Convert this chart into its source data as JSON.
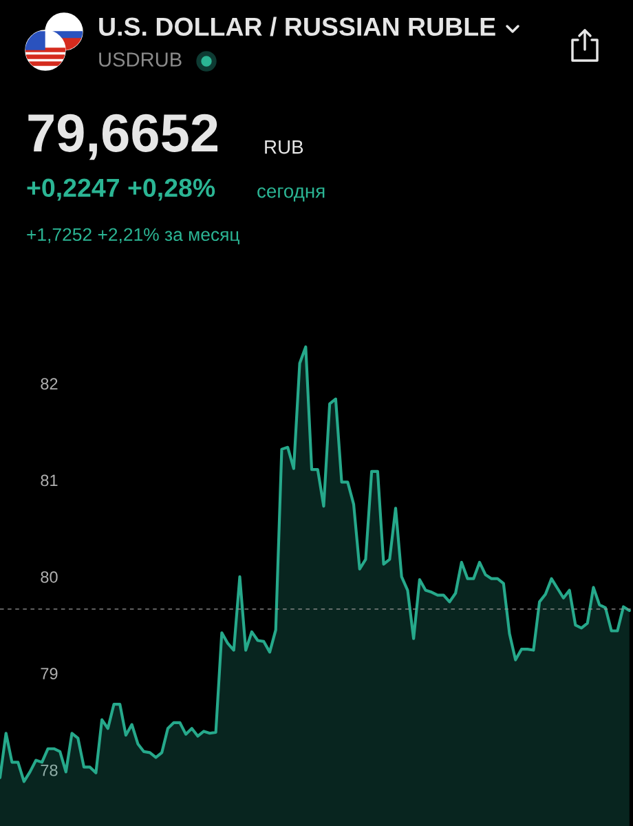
{
  "chart_data": {
    "type": "area",
    "title": "U.S. DOLLAR / RUSSIAN RUBLE",
    "subtitle": "USDRUB",
    "annotations": [
      "79,6652",
      "RUB",
      "+0,2247 +0,28%",
      "сегодня",
      "+1,7252 +2,21% за месяц"
    ],
    "categories": [
      null,
      null,
      null,
      null,
      null,
      null,
      null,
      null,
      null,
      null,
      null,
      null,
      null,
      null,
      null,
      null,
      null,
      null,
      null,
      null,
      null,
      null,
      null,
      null,
      null,
      null,
      null,
      null,
      null,
      null,
      null,
      null,
      null,
      null,
      null,
      null,
      null,
      null,
      null,
      null,
      null,
      null,
      null,
      null,
      null,
      null,
      null,
      null,
      null,
      null,
      null,
      null,
      null,
      null,
      null,
      null,
      null,
      null,
      null,
      null,
      null,
      null,
      null,
      null,
      null,
      null,
      null,
      null,
      null,
      null,
      null,
      null,
      null,
      null,
      null,
      null,
      null,
      null,
      null,
      null,
      null,
      null,
      null,
      null,
      null,
      null,
      null,
      null,
      null,
      null,
      null,
      null,
      null,
      null,
      null,
      null,
      null,
      null,
      null,
      null,
      null,
      null,
      null,
      null,
      null,
      null
    ],
    "series": [
      {
        "color": "#26a98b",
        "values": [
          77.92,
          78.38,
          78.08,
          78.08,
          77.88,
          77.98,
          78.1,
          78.08,
          78.22,
          78.22,
          78.19,
          77.98,
          78.38,
          78.33,
          78.03,
          78.03,
          77.97,
          78.52,
          78.43,
          78.68,
          78.68,
          78.36,
          78.47,
          78.27,
          78.19,
          78.18,
          78.13,
          78.18,
          78.43,
          78.49,
          78.49,
          78.37,
          78.43,
          78.35,
          78.4,
          78.38,
          78.39,
          79.42,
          79.31,
          79.24,
          80.0,
          79.24,
          79.43,
          79.34,
          79.33,
          79.22,
          79.45,
          81.32,
          81.34,
          81.12,
          82.21,
          82.38,
          81.11,
          81.11,
          80.73,
          81.79,
          81.84,
          80.98,
          80.98,
          80.75,
          80.08,
          80.18,
          81.09,
          81.09,
          80.13,
          80.18,
          80.71,
          80.0,
          79.86,
          79.36,
          79.97,
          79.86,
          79.84,
          79.81,
          79.81,
          79.74,
          79.83,
          80.15,
          79.98,
          79.98,
          80.15,
          80.02,
          79.98,
          79.98,
          79.93,
          79.41,
          79.14,
          79.25,
          79.25,
          79.24,
          79.74,
          79.82,
          79.98,
          79.88,
          79.78,
          79.86,
          79.5,
          79.47,
          79.52,
          79.89,
          79.71,
          79.68,
          79.44,
          79.44,
          79.69,
          79.65
        ]
      }
    ],
    "ylim": [
      77.42,
      85.97
    ],
    "yticks": [
      78,
      79,
      80,
      81,
      82
    ],
    "grid": false,
    "legend": false,
    "marker": "none",
    "line_style": "solid",
    "ref_lines": [
      {
        "axis": "y",
        "value": 79.6652,
        "color": "#9a9a9a",
        "line_style": "dashed"
      }
    ]
  }
}
